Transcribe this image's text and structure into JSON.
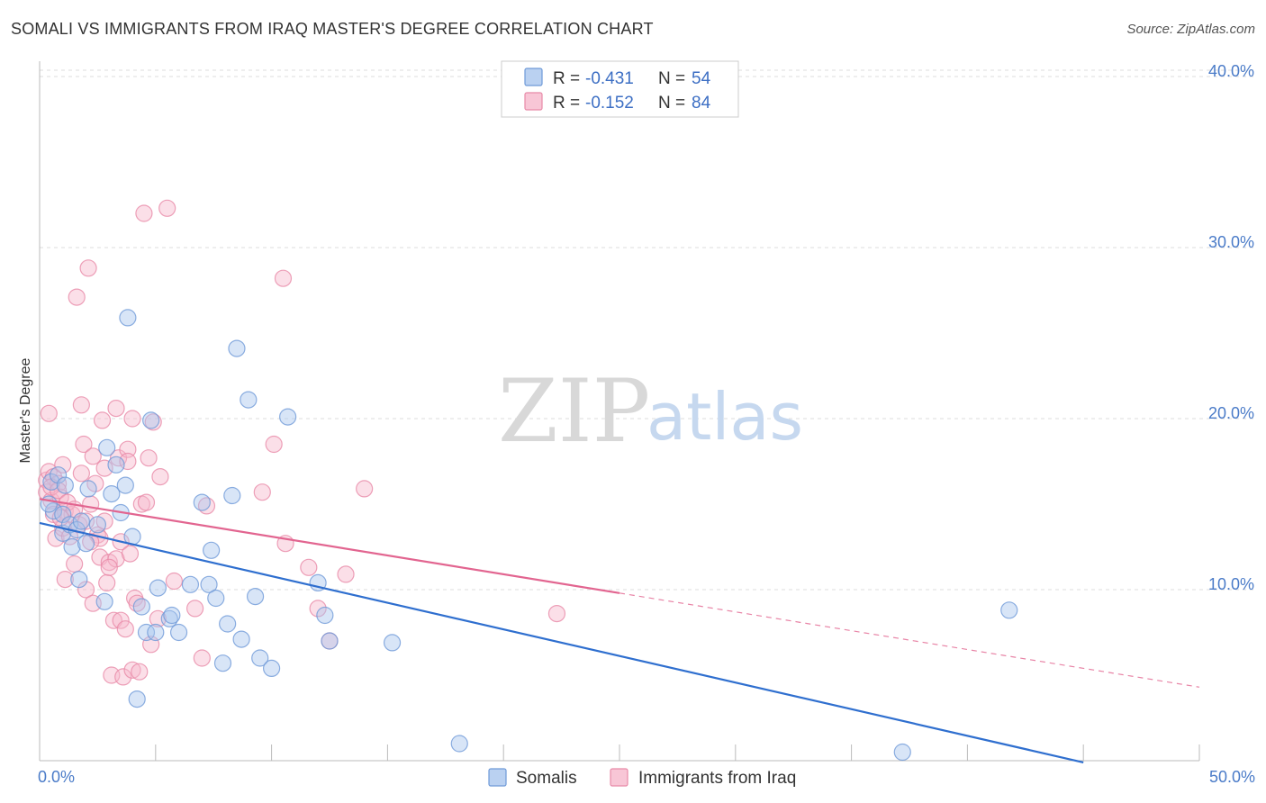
{
  "title": "SOMALI VS IMMIGRANTS FROM IRAQ MASTER'S DEGREE CORRELATION CHART",
  "source": "Source: ZipAtlas.com",
  "watermark": {
    "zip": "ZIP",
    "atlas": "atlas"
  },
  "colors": {
    "somalis_fill": "#a9c6ee",
    "somalis_stroke": "#6f9ad8",
    "somalis_line": "#2f6fcf",
    "iraq_fill": "#f6b8cc",
    "iraq_stroke": "#e88aa8",
    "iraq_line": "#e26590",
    "grid": "#dddddd",
    "tick_label": "#4a7bc8"
  },
  "legend": {
    "rows": [
      {
        "r_label": "R = ",
        "r_value": "-0.431",
        "n_label": "N = ",
        "n_value": "54"
      },
      {
        "r_label": "R = ",
        "r_value": "-0.152",
        "n_label": "N = ",
        "n_value": "84"
      }
    ]
  },
  "bottom_legend": [
    "Somalis",
    "Immigrants from Iraq"
  ],
  "chart_data": {
    "type": "scatter",
    "title": "SOMALI VS IMMIGRANTS FROM IRAQ MASTER'S DEGREE CORRELATION CHART",
    "xlabel": "",
    "ylabel": "Master's Degree",
    "xlim": [
      0,
      50
    ],
    "ylim": [
      0,
      40
    ],
    "x_tick_labels": [
      "0.0%",
      "50.0%"
    ],
    "y_ticks": [
      10,
      20,
      30,
      40
    ],
    "y_tick_labels": [
      "10.0%",
      "20.0%",
      "30.0%",
      "40.0%"
    ],
    "grid": true,
    "legend_position": "top-center",
    "series": [
      {
        "name": "Somalis",
        "r": -0.431,
        "n": 54,
        "trend": {
          "x": [
            0,
            45
          ],
          "y": [
            13.9,
            -0.1
          ],
          "dashed_to": null
        },
        "points": [
          [
            0.5,
            16.3
          ],
          [
            0.6,
            14.6
          ],
          [
            0.8,
            16.7
          ],
          [
            1.0,
            14.4
          ],
          [
            1.0,
            13.3
          ],
          [
            1.1,
            16.1
          ],
          [
            1.3,
            13.8
          ],
          [
            1.4,
            12.5
          ],
          [
            1.6,
            13.5
          ],
          [
            1.7,
            10.6
          ],
          [
            1.8,
            14.0
          ],
          [
            2.0,
            12.7
          ],
          [
            2.1,
            15.9
          ],
          [
            2.5,
            13.8
          ],
          [
            2.8,
            9.3
          ],
          [
            2.9,
            18.3
          ],
          [
            3.1,
            15.6
          ],
          [
            3.3,
            17.3
          ],
          [
            3.5,
            14.5
          ],
          [
            3.7,
            16.1
          ],
          [
            3.8,
            25.9
          ],
          [
            4.0,
            13.1
          ],
          [
            4.2,
            3.6
          ],
          [
            4.4,
            9.0
          ],
          [
            4.6,
            7.5
          ],
          [
            4.8,
            19.9
          ],
          [
            5.0,
            7.5
          ],
          [
            5.1,
            10.1
          ],
          [
            5.6,
            8.3
          ],
          [
            5.7,
            8.5
          ],
          [
            6.0,
            7.5
          ],
          [
            6.5,
            10.3
          ],
          [
            7.0,
            15.1
          ],
          [
            7.3,
            10.3
          ],
          [
            7.4,
            12.3
          ],
          [
            7.6,
            9.5
          ],
          [
            7.9,
            5.7
          ],
          [
            8.1,
            8.0
          ],
          [
            8.3,
            15.5
          ],
          [
            8.5,
            24.1
          ],
          [
            8.7,
            7.1
          ],
          [
            9.0,
            21.1
          ],
          [
            9.3,
            9.6
          ],
          [
            9.5,
            6.0
          ],
          [
            10.0,
            5.4
          ],
          [
            10.7,
            20.1
          ],
          [
            12.0,
            10.4
          ],
          [
            12.3,
            8.5
          ],
          [
            12.5,
            7.0
          ],
          [
            15.2,
            6.9
          ],
          [
            18.1,
            1.0
          ],
          [
            41.8,
            8.8
          ],
          [
            37.2,
            0.5
          ],
          [
            0.4,
            15.0
          ]
        ]
      },
      {
        "name": "Immigrants from Iraq",
        "r": -0.152,
        "n": 84,
        "trend": {
          "x": [
            0,
            25
          ],
          "y": [
            15.3,
            9.8
          ],
          "dashed_to": {
            "x": 50,
            "y": 4.3
          }
        },
        "points": [
          [
            0.3,
            16.4
          ],
          [
            0.3,
            15.7
          ],
          [
            0.4,
            16.9
          ],
          [
            0.4,
            20.3
          ],
          [
            0.5,
            15.2
          ],
          [
            0.6,
            16.6
          ],
          [
            0.6,
            14.4
          ],
          [
            0.7,
            13.0
          ],
          [
            0.8,
            16.2
          ],
          [
            0.9,
            15.4
          ],
          [
            1.0,
            13.6
          ],
          [
            1.0,
            17.3
          ],
          [
            1.1,
            14.6
          ],
          [
            1.1,
            10.6
          ],
          [
            1.3,
            13.1
          ],
          [
            1.4,
            14.4
          ],
          [
            1.5,
            11.5
          ],
          [
            1.6,
            27.1
          ],
          [
            1.7,
            13.8
          ],
          [
            1.8,
            20.8
          ],
          [
            1.8,
            16.8
          ],
          [
            1.9,
            18.5
          ],
          [
            2.0,
            10.0
          ],
          [
            2.0,
            14.0
          ],
          [
            2.1,
            28.8
          ],
          [
            2.2,
            15.0
          ],
          [
            2.3,
            17.8
          ],
          [
            2.3,
            9.2
          ],
          [
            2.4,
            16.2
          ],
          [
            2.5,
            13.2
          ],
          [
            2.6,
            11.9
          ],
          [
            2.7,
            19.9
          ],
          [
            2.8,
            17.1
          ],
          [
            2.8,
            14.0
          ],
          [
            2.9,
            10.4
          ],
          [
            3.0,
            11.6
          ],
          [
            3.1,
            5.0
          ],
          [
            3.2,
            8.2
          ],
          [
            3.3,
            20.6
          ],
          [
            3.3,
            11.8
          ],
          [
            3.4,
            17.7
          ],
          [
            3.5,
            8.2
          ],
          [
            3.5,
            12.8
          ],
          [
            3.6,
            4.9
          ],
          [
            3.7,
            7.7
          ],
          [
            3.8,
            18.2
          ],
          [
            3.8,
            17.5
          ],
          [
            3.9,
            12.1
          ],
          [
            4.0,
            20.0
          ],
          [
            4.0,
            5.3
          ],
          [
            4.1,
            9.5
          ],
          [
            4.2,
            9.2
          ],
          [
            4.3,
            5.2
          ],
          [
            4.4,
            15.0
          ],
          [
            4.5,
            32.0
          ],
          [
            4.6,
            15.1
          ],
          [
            4.7,
            17.7
          ],
          [
            4.8,
            6.8
          ],
          [
            4.9,
            19.8
          ],
          [
            5.1,
            8.3
          ],
          [
            5.2,
            16.6
          ],
          [
            5.5,
            32.3
          ],
          [
            5.8,
            10.5
          ],
          [
            6.7,
            8.9
          ],
          [
            7.0,
            6.0
          ],
          [
            7.2,
            14.9
          ],
          [
            9.6,
            15.7
          ],
          [
            10.1,
            18.5
          ],
          [
            10.5,
            28.2
          ],
          [
            10.6,
            12.7
          ],
          [
            11.6,
            11.3
          ],
          [
            12.0,
            8.9
          ],
          [
            12.5,
            7.0
          ],
          [
            13.2,
            10.9
          ],
          [
            14.0,
            15.9
          ],
          [
            22.3,
            8.6
          ],
          [
            0.5,
            16.0
          ],
          [
            0.8,
            15.8
          ],
          [
            1.2,
            15.1
          ],
          [
            2.6,
            13.0
          ],
          [
            3.0,
            11.3
          ],
          [
            1.5,
            14.7
          ],
          [
            2.2,
            12.8
          ],
          [
            0.9,
            14.2
          ]
        ]
      }
    ]
  }
}
